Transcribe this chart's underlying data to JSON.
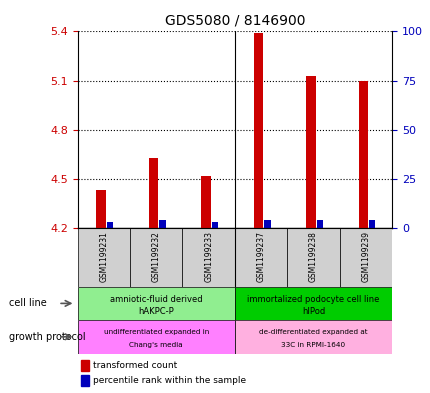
{
  "title": "GDS5080 / 8146900",
  "samples": [
    "GSM1199231",
    "GSM1199232",
    "GSM1199233",
    "GSM1199237",
    "GSM1199238",
    "GSM1199239"
  ],
  "transformed_counts": [
    4.43,
    4.63,
    4.52,
    5.39,
    5.13,
    5.1
  ],
  "percentile_ranks": [
    3,
    4,
    3,
    4,
    4,
    4
  ],
  "ylim_left": [
    4.2,
    5.4
  ],
  "ylim_right": [
    0,
    100
  ],
  "yticks_left": [
    4.2,
    4.5,
    4.8,
    5.1,
    5.4
  ],
  "yticks_right": [
    0,
    25,
    50,
    75,
    100
  ],
  "cell_line_groups": [
    {
      "label": "amniotic-fluid derived\nhAKPC-P",
      "samples": [
        0,
        1,
        2
      ],
      "color": "#90EE90"
    },
    {
      "label": "immortalized podocyte cell line\nhIPod",
      "samples": [
        3,
        4,
        5
      ],
      "color": "#00CC00"
    }
  ],
  "growth_protocol_groups": [
    {
      "label": "undifferentiated expanded in\nChang's media",
      "samples": [
        0,
        1,
        2
      ],
      "color": "#FF80FF"
    },
    {
      "label": "de-differentiated expanded at\n33C in RPMI-1640",
      "samples": [
        3,
        4,
        5
      ],
      "color": "#FFB0E0"
    }
  ],
  "bar_bottom": 4.2,
  "red_color": "#CC0000",
  "blue_color": "#0000BB",
  "tick_color_left": "#CC0000",
  "tick_color_right": "#0000BB",
  "legend_red_label": "transformed count",
  "legend_blue_label": "percentile rank within the sample",
  "cell_line_label": "cell line",
  "growth_protocol_label": "growth protocol"
}
